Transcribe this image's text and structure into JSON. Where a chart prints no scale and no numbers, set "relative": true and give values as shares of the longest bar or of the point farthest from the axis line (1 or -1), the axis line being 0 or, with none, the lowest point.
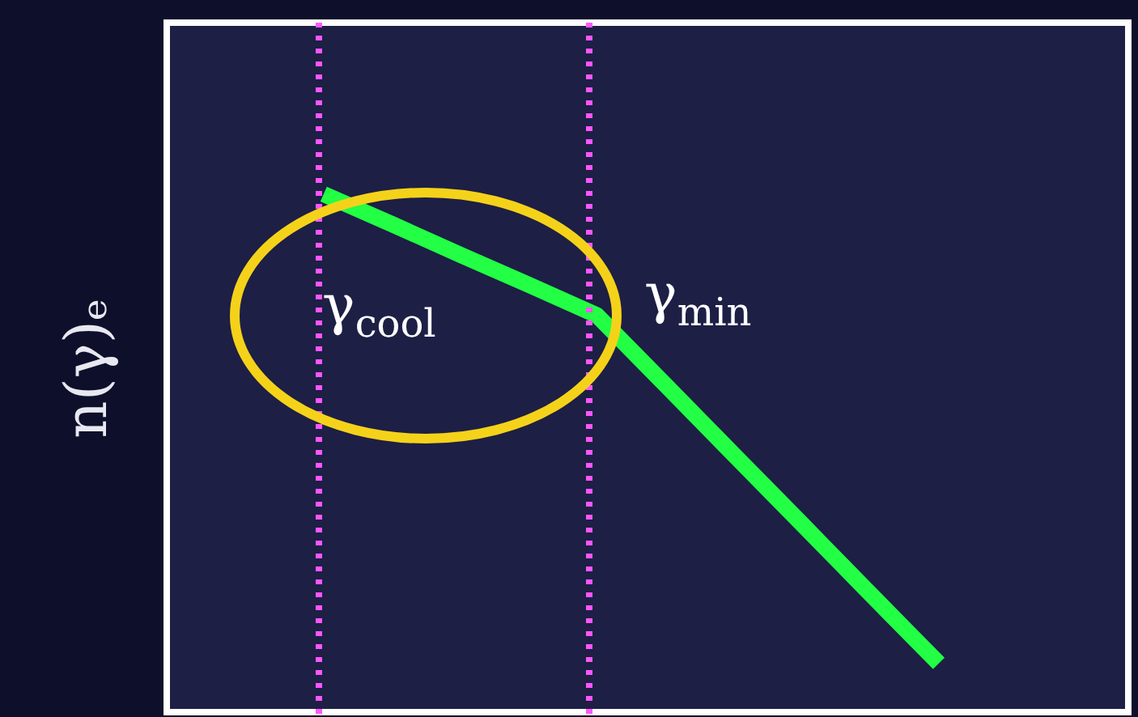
{
  "chart_data": {
    "type": "line",
    "ylabel": "n(γ)ₑ",
    "categories": [
      null,
      null,
      null,
      null,
      null,
      null,
      null,
      null,
      null,
      null
    ],
    "relative": true,
    "line_style": "solid",
    "marker": "none",
    "series": [
      {
        "color": "#22ff44",
        "values": [
          1,
          0.942,
          0.883,
          0.825,
          0.766,
          0.632,
          0.497,
          0.363,
          0.228,
          0.094
        ]
      }
    ],
    "annotations": [
      "γ$_{cool}$",
      "γ$_{min}$"
    ]
  }
}
